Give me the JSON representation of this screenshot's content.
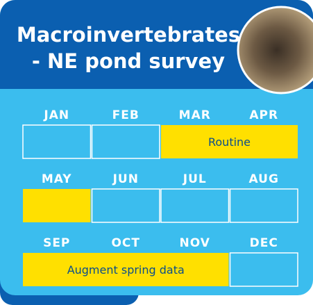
{
  "header": {
    "title_lines": [
      "Macroinvertebrates",
      "- NE pond survey"
    ]
  },
  "calendar": {
    "rows": [
      {
        "months": [
          "JAN",
          "FEB",
          "MAR",
          "APR"
        ],
        "blocks": [
          {
            "start": 2,
            "span": 2,
            "label": "Routine"
          }
        ]
      },
      {
        "months": [
          "MAY",
          "JUN",
          "JUL",
          "AUG"
        ],
        "blocks": [
          {
            "start": 0,
            "span": 1
          }
        ]
      },
      {
        "months": [
          "SEP",
          "OCT",
          "NOV",
          "DEC"
        ],
        "blocks": [
          {
            "start": 0,
            "span": 3,
            "label": "Augment spring data"
          }
        ]
      }
    ]
  }
}
